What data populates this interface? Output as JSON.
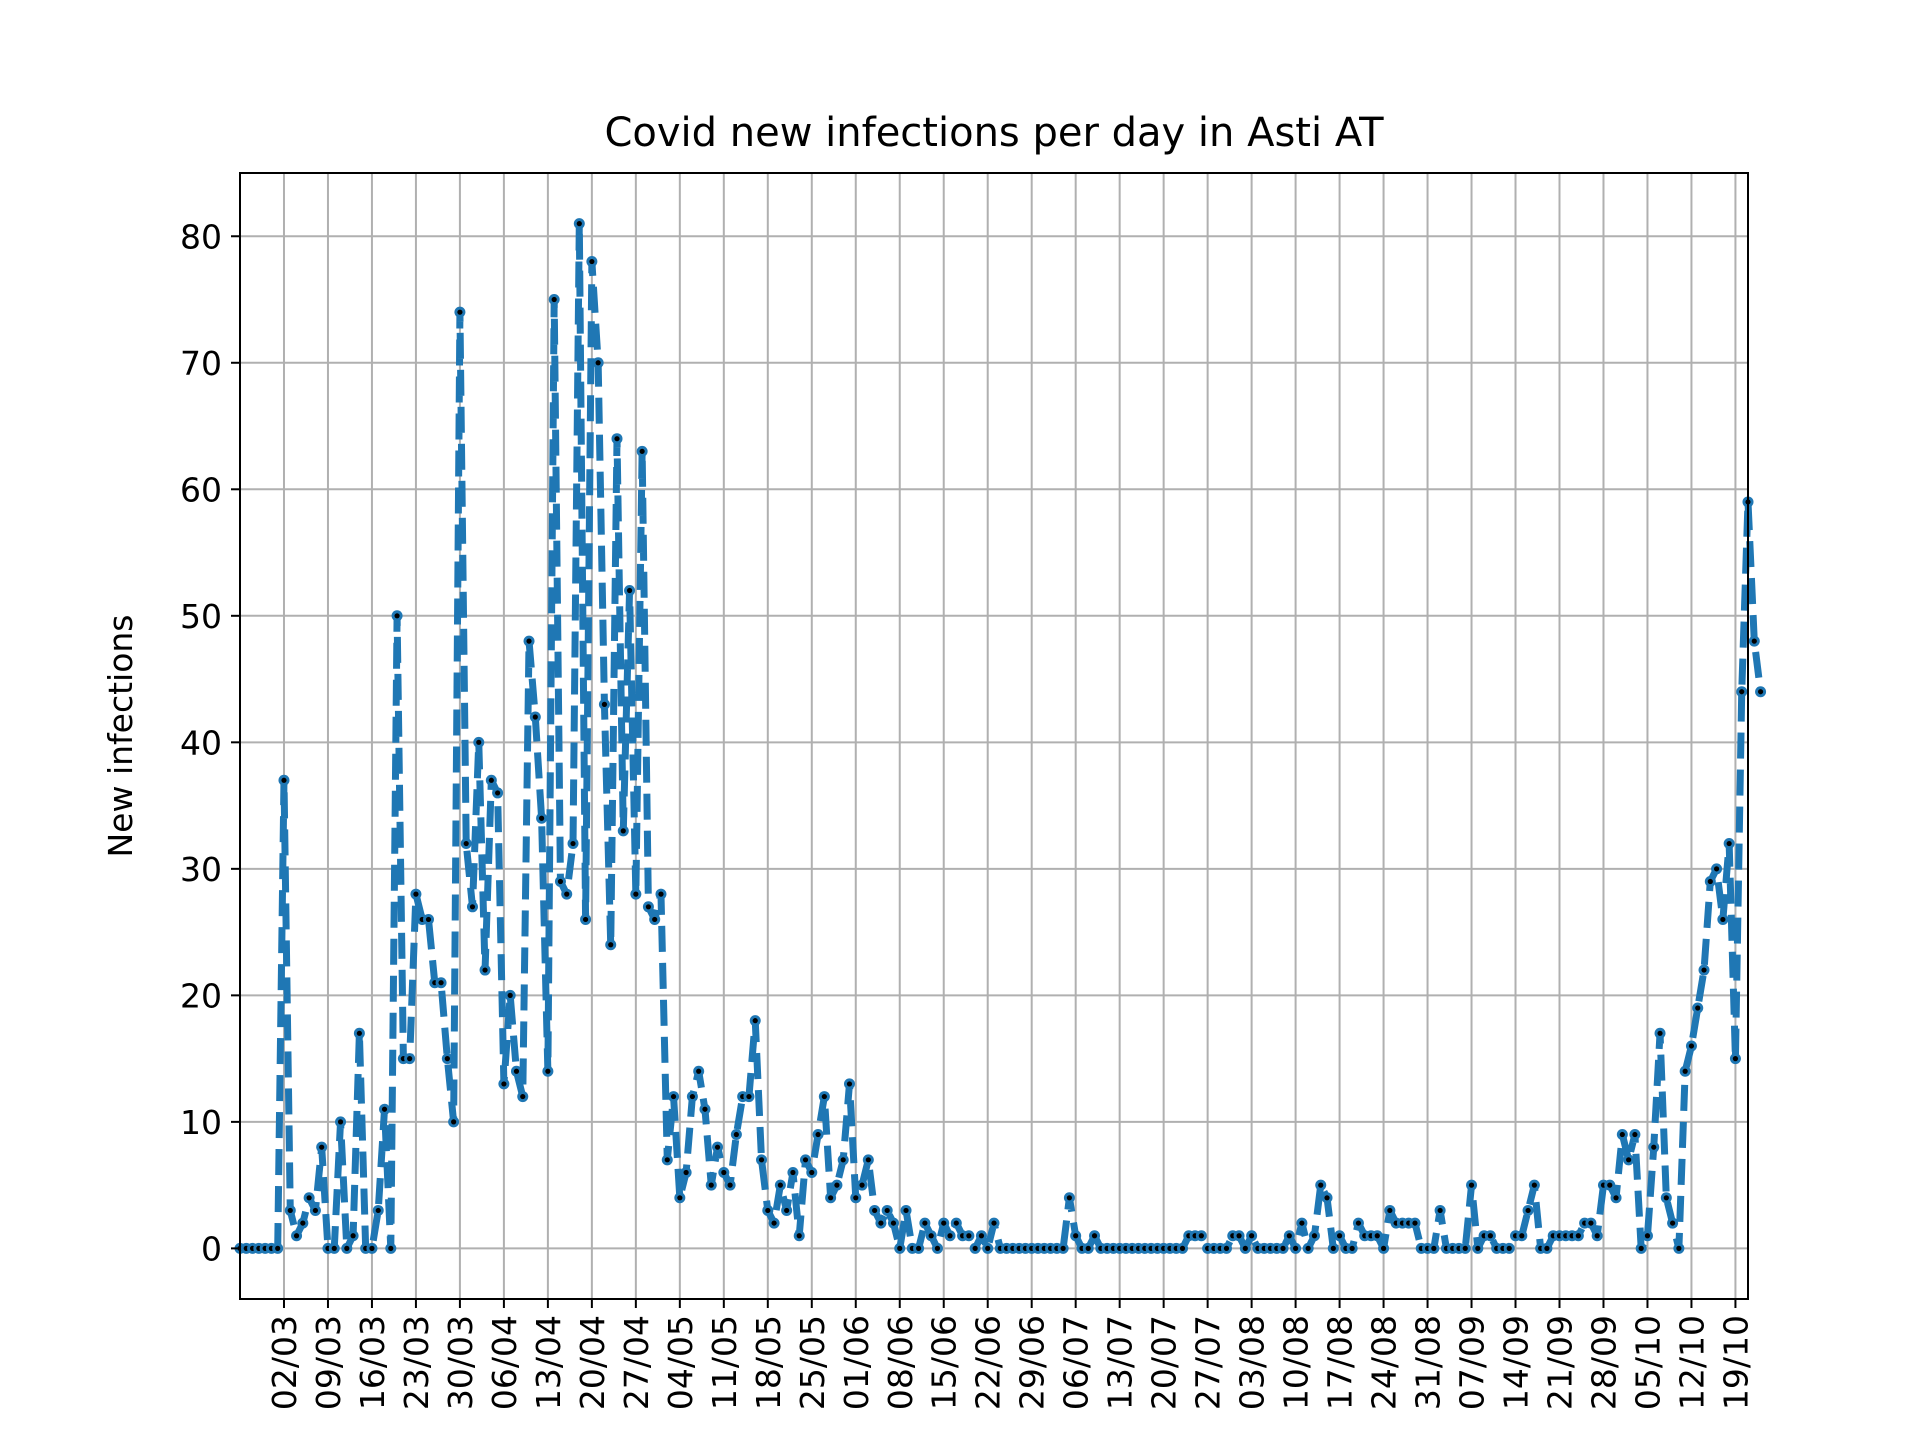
{
  "chart_data": {
    "type": "line",
    "title": "Covid new infections per day in Asti AT",
    "xlabel": "",
    "ylabel": "New infections",
    "ylim": [
      -4,
      85
    ],
    "yticks": [
      0,
      10,
      20,
      30,
      40,
      50,
      60,
      70,
      80
    ],
    "grid": true,
    "legend": "none",
    "line_style": "dashed",
    "line_color": "#1f77b4",
    "marker_color": "#000000",
    "grid_color": "#b0b0b0",
    "x_start": "2020-02-24",
    "x_end": "2020-10-21",
    "x_tick_dates": [
      "2020-03-02",
      "2020-03-09",
      "2020-03-16",
      "2020-03-23",
      "2020-03-30",
      "2020-04-06",
      "2020-04-13",
      "2020-04-20",
      "2020-04-27",
      "2020-05-04",
      "2020-05-11",
      "2020-05-18",
      "2020-05-25",
      "2020-06-01",
      "2020-06-08",
      "2020-06-15",
      "2020-06-22",
      "2020-06-29",
      "2020-07-06",
      "2020-07-13",
      "2020-07-20",
      "2020-07-27",
      "2020-08-03",
      "2020-08-10",
      "2020-08-17",
      "2020-08-24",
      "2020-08-31",
      "2020-09-07",
      "2020-09-14",
      "2020-09-21",
      "2020-09-28",
      "2020-10-05",
      "2020-10-12",
      "2020-10-19"
    ],
    "x_tick_labels": [
      "02/03",
      "09/03",
      "16/03",
      "23/03",
      "30/03",
      "06/04",
      "13/04",
      "20/04",
      "27/04",
      "04/05",
      "11/05",
      "18/05",
      "25/05",
      "01/06",
      "08/06",
      "15/06",
      "22/06",
      "29/06",
      "06/07",
      "13/07",
      "20/07",
      "27/07",
      "03/08",
      "10/08",
      "17/08",
      "24/08",
      "31/08",
      "07/09",
      "14/09",
      "21/09",
      "28/09",
      "05/10",
      "12/10",
      "19/10"
    ],
    "series": [
      {
        "name": "",
        "values": [
          0,
          0,
          0,
          0,
          0,
          0,
          0,
          37,
          3,
          1,
          2,
          4,
          3,
          8,
          0,
          0,
          10,
          0,
          1,
          17,
          0,
          0,
          3,
          11,
          0,
          50,
          15,
          15,
          28,
          26,
          26,
          21,
          21,
          15,
          10,
          74,
          32,
          27,
          40,
          22,
          37,
          36,
          13,
          20,
          14,
          12,
          48,
          42,
          34,
          14,
          75,
          29,
          28,
          32,
          81,
          26,
          78,
          70,
          43,
          24,
          64,
          33,
          52,
          28,
          63,
          27,
          26,
          28,
          7,
          12,
          4,
          6,
          12,
          14,
          11,
          5,
          8,
          6,
          5,
          9,
          12,
          12,
          18,
          7,
          3,
          2,
          5,
          3,
          6,
          1,
          7,
          6,
          9,
          12,
          4,
          5,
          7,
          13,
          4,
          5,
          7,
          3,
          2,
          3,
          2,
          0,
          3,
          0,
          0,
          2,
          1,
          0,
          2,
          1,
          2,
          1,
          1,
          0,
          1,
          0,
          2,
          0,
          0,
          0,
          0,
          0,
          0,
          0,
          0,
          0,
          0,
          0,
          4,
          1,
          0,
          0,
          1,
          0,
          0,
          0,
          0,
          0,
          0,
          0,
          0,
          0,
          0,
          0,
          0,
          0,
          0,
          1,
          1,
          1,
          0,
          0,
          0,
          0,
          1,
          1,
          0,
          1,
          0,
          0,
          0,
          0,
          0,
          1,
          0,
          2,
          0,
          1,
          5,
          4,
          0,
          1,
          0,
          0,
          2,
          1,
          1,
          1,
          0,
          3,
          2,
          2,
          2,
          2,
          0,
          0,
          0,
          3,
          0,
          0,
          0,
          0,
          5,
          0,
          1,
          1,
          0,
          0,
          0,
          1,
          1,
          3,
          5,
          0,
          0,
          1,
          1,
          1,
          1,
          1,
          2,
          2,
          1,
          5,
          5,
          4,
          9,
          7,
          9,
          0,
          1,
          8,
          17,
          4,
          2,
          0,
          14,
          16,
          19,
          22,
          29,
          30,
          26,
          32,
          15,
          44,
          59,
          48,
          44
        ]
      }
    ]
  }
}
